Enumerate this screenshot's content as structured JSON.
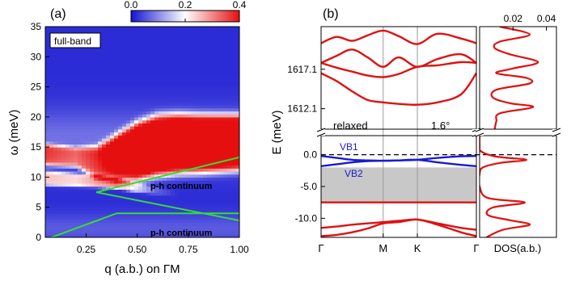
{
  "chart_data": [
    {
      "type": "heatmap",
      "panel_label": "(a)",
      "xlabel": "q (a.b.) on ΓM",
      "ylabel": "ω (meV)",
      "xlim": [
        0.05,
        1.0
      ],
      "ylim": [
        0,
        35
      ],
      "xticks": [
        0.25,
        0.5,
        0.75,
        1.0
      ],
      "xtick_labels": [
        "0.25",
        "0.50",
        "0.75",
        "1.00"
      ],
      "yticks": [
        0,
        5,
        10,
        15,
        20,
        25,
        30,
        35
      ],
      "ytick_labels": [
        "0",
        "5",
        "10",
        "15",
        "20",
        "25",
        "30",
        "35"
      ],
      "colorbar": {
        "range": [
          0,
          0.4
        ],
        "ticks": [
          0.0,
          0.2,
          0.4
        ],
        "tick_labels": [
          "0.0",
          "0.2",
          "0.4"
        ],
        "colors": [
          "#1414d2",
          "#ffffff",
          "#e60f0f"
        ]
      },
      "grid": false,
      "annotations": {
        "full_band": "full-band",
        "continuum_upper": "p-h continuum",
        "continuum_lower": "p-h continuum"
      },
      "boundary_lines": {
        "color": "#33dd33",
        "upper": {
          "x": [
            1.0,
            0.3,
            1.0
          ],
          "y": [
            13.3,
            7.5,
            2.8
          ]
        },
        "lower": {
          "x": [
            0.08,
            0.4,
            1.0
          ],
          "y": [
            0,
            4.0,
            4.0
          ]
        }
      },
      "intensity_features": {
        "high_band": {
          "x": [
            0.05,
            0.2,
            0.3,
            0.4,
            0.5,
            0.6,
            0.7,
            0.8,
            0.9,
            1.0
          ],
          "y": [
            13.8,
            13.4,
            12.6,
            13.3,
            14.3,
            15.3,
            15.6,
            15.6,
            15.7,
            15.8
          ],
          "width": [
            1.6,
            1.5,
            2.4,
            3.5,
            4.3,
            4.5,
            4.4,
            4.3,
            4.2,
            4.1
          ],
          "amp": [
            0.3,
            0.26,
            0.32,
            0.4,
            0.5,
            0.5,
            0.5,
            0.5,
            0.5,
            0.5
          ]
        },
        "low_band": {
          "x": [
            0.05,
            0.2,
            0.3,
            0.4,
            0.5,
            0.6,
            0.7,
            0.8,
            0.9,
            1.0
          ],
          "y": [
            9.9,
            9.6,
            9.4,
            9.0,
            8.3,
            7.8,
            7.2,
            6.6,
            6.1,
            5.7
          ],
          "width": [
            1.1,
            1.0,
            0.9,
            0.8,
            0.7,
            0.6,
            0.5,
            0.4,
            0.4,
            0.4
          ],
          "amp": [
            0.22,
            0.2,
            0.25,
            0.25,
            0.14,
            0.04,
            0.0,
            0.0,
            0.0,
            0.0
          ]
        }
      }
    },
    {
      "type": "line",
      "panel_label": "(b)",
      "xlabel": "",
      "ylabel": "E (meV)",
      "k_labels": [
        "Γ",
        "M",
        "K",
        "Γ"
      ],
      "k_positions": [
        0,
        0.4,
        0.62,
        1.0
      ],
      "upper_ylim": [
        1609.5,
        1622.5
      ],
      "upper_yticks": [
        1612.1,
        1617.1
      ],
      "upper_ytick_labels": [
        "1612.1",
        "1617.1"
      ],
      "lower_ylim": [
        -13,
        3
      ],
      "lower_yticks": [
        0.0,
        -5.0,
        -10.0
      ],
      "lower_ytick_labels": [
        "0.0",
        "-5.0",
        "-10.0"
      ],
      "text_relaxed": "relaxed",
      "text_angle": "1.6°",
      "fermi_level": 0.0,
      "gap_fill": [
        -7.5,
        -2.0
      ],
      "series": [
        {
          "name": "VB1",
          "color": "#1a1ad0",
          "x": [
            0,
            0.1,
            0.2,
            0.3,
            0.4,
            0.5,
            0.62,
            0.75,
            0.9,
            1.0
          ],
          "y": [
            -0.2,
            -0.5,
            -0.8,
            -0.9,
            -0.95,
            -0.9,
            -0.8,
            -0.5,
            -0.25,
            -0.2
          ]
        },
        {
          "name": "VB2",
          "color": "#1a1ad0",
          "x": [
            0,
            0.1,
            0.2,
            0.3,
            0.4,
            0.5,
            0.62,
            0.75,
            0.9,
            1.0
          ],
          "y": [
            -1.8,
            -1.5,
            -1.2,
            -1.0,
            -0.95,
            -0.9,
            -0.8,
            -1.2,
            -1.6,
            -1.8
          ]
        },
        {
          "color": "#e01010",
          "x": [
            0,
            0.1,
            0.2,
            0.3,
            0.4,
            0.5,
            0.62,
            0.75,
            0.9,
            1.0
          ],
          "y": [
            -7.5,
            -7.5,
            -7.5,
            -7.5,
            -7.5,
            -7.5,
            -7.5,
            -7.5,
            -7.5,
            -7.5
          ]
        },
        {
          "color": "#e01010",
          "x": [
            0,
            0.1,
            0.2,
            0.3,
            0.4,
            0.5,
            0.62,
            0.75,
            0.9,
            1.0
          ],
          "y": [
            -11.5,
            -11.3,
            -11.0,
            -10.8,
            -10.6,
            -10.4,
            -10.2,
            -10.8,
            -11.5,
            -11.8
          ]
        },
        {
          "color": "#e01010",
          "x": [
            0,
            0.1,
            0.2,
            0.3,
            0.4,
            0.5,
            0.62,
            0.75,
            0.9,
            1.0
          ],
          "y": [
            -12.8,
            -12.6,
            -12.2,
            -11.6,
            -10.8,
            -10.6,
            -10.2,
            -11.0,
            -12.2,
            -12.8
          ]
        },
        {
          "color": "#e01010",
          "x": [
            0,
            0.1,
            0.2,
            0.3,
            0.4,
            0.5,
            0.62,
            0.75,
            0.9,
            1.0
          ],
          "y": [
            1616.6,
            1615.6,
            1614.3,
            1613.2,
            1612.9,
            1612.7,
            1612.6,
            1612.9,
            1613.9,
            1616.6
          ]
        },
        {
          "color": "#e01010",
          "x": [
            0,
            0.1,
            0.2,
            0.3,
            0.4,
            0.5,
            0.62,
            0.75,
            0.9,
            1.0
          ],
          "y": [
            1617.9,
            1617.3,
            1616.8,
            1616.3,
            1616.1,
            1616.5,
            1617.4,
            1617.6,
            1618.0,
            1617.9
          ]
        },
        {
          "color": "#e01010",
          "x": [
            0,
            0.1,
            0.2,
            0.3,
            0.4,
            0.5,
            0.62,
            0.75,
            0.9,
            1.0
          ],
          "y": [
            1617.9,
            1618.8,
            1619.6,
            1618.6,
            1617.4,
            1618.6,
            1617.4,
            1618.4,
            1619.0,
            1617.9
          ]
        },
        {
          "color": "#e01010",
          "x": [
            0,
            0.1,
            0.2,
            0.3,
            0.4,
            0.5,
            0.62,
            0.75,
            0.9,
            1.0
          ],
          "y": [
            1620.4,
            1621.2,
            1620.7,
            1621.4,
            1622.0,
            1621.3,
            1620.3,
            1621.6,
            1621.0,
            1620.4
          ]
        }
      ],
      "dos": {
        "xlabel": "DOS(a.b.)",
        "xticks": [
          0.02,
          0.04
        ],
        "xtick_labels": [
          "0.02",
          "0.04"
        ],
        "xlim": [
          0,
          0.046
        ],
        "color": "#e01010",
        "upper_curve": {
          "E": [
            1609.5,
            1610.5,
            1611.5,
            1612.3,
            1612.8,
            1613.5,
            1614.5,
            1615.3,
            1616.0,
            1616.6,
            1617.2,
            1618.0,
            1619.0,
            1619.8,
            1620.6,
            1621.5,
            1622.5
          ],
          "dos": [
            0.009,
            0.01,
            0.012,
            0.032,
            0.018,
            0.008,
            0.01,
            0.03,
            0.028,
            0.01,
            0.02,
            0.035,
            0.018,
            0.009,
            0.012,
            0.03,
            0.012
          ]
        },
        "lower_curve": {
          "E": [
            3,
            1.5,
            0.5,
            -0.3,
            -0.8,
            -1.3,
            -2.0,
            -3.0,
            -5.0,
            -6.8,
            -7.5,
            -8.3,
            -9.5,
            -10.3,
            -11.0,
            -11.8,
            -13
          ],
          "dos": [
            0,
            0,
            0.001,
            0.01,
            0.028,
            0.012,
            0.002,
            0,
            0,
            0.005,
            0.027,
            0.008,
            0.005,
            0.018,
            0.03,
            0.014,
            0.004
          ]
        }
      }
    }
  ]
}
